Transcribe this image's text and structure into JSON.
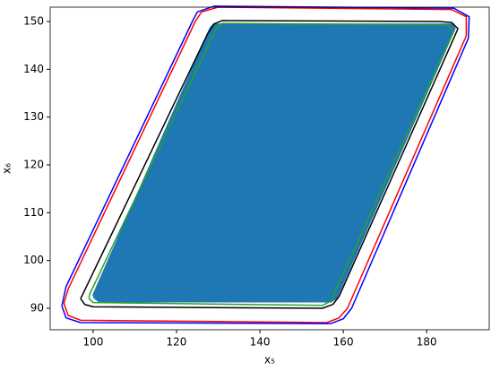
{
  "chart_data": {
    "type": "scatter",
    "x_label": "x₅",
    "y_label": "x₆",
    "xlim": [
      89.7,
      195
    ],
    "ylim": [
      85.5,
      153
    ],
    "xticks": [
      100,
      120,
      140,
      160,
      180
    ],
    "yticks": [
      90,
      100,
      110,
      120,
      130,
      140,
      150
    ],
    "series": [
      {
        "color": "#1f77b4",
        "fill": true,
        "x": [
          100.5,
          101.5,
          157,
          158.2,
          186.5,
          186,
          129,
          128.3,
          100.3
        ],
        "y": [
          92.3,
          91.6,
          91.6,
          92.3,
          148.5,
          149.2,
          149.2,
          148.5,
          92.8
        ]
      },
      {
        "color": "#2ca02c",
        "fill": false,
        "x": [
          99,
          100,
          155,
          157,
          186.5,
          185,
          131,
          129.5,
          99.2,
          99
        ],
        "y": [
          92,
          91.2,
          90.6,
          91.5,
          148,
          149.3,
          149.6,
          148.5,
          93,
          92
        ]
      },
      {
        "color": "#000000",
        "fill": false,
        "x": [
          97,
          98,
          100,
          155,
          157.5,
          159,
          186.5,
          187.5,
          186,
          183,
          131,
          129,
          127.5,
          98,
          97
        ],
        "y": [
          92,
          90.8,
          90.3,
          90,
          90.8,
          92.5,
          146.5,
          148.5,
          149.8,
          150,
          150.2,
          149.5,
          147.5,
          93.8,
          92
        ]
      },
      {
        "color": "#ff0000",
        "fill": false,
        "x": [
          93,
          94,
          97,
          156,
          159,
          161,
          189.5,
          189.5,
          186,
          130,
          126,
          124.5,
          94,
          93
        ],
        "y": [
          91,
          88.5,
          87.5,
          87,
          88,
          90,
          147,
          151,
          152.5,
          153,
          152,
          150,
          94,
          91
        ]
      },
      {
        "color": "#0000ff",
        "fill": false,
        "x": [
          92.5,
          93.5,
          97,
          157,
          160,
          162,
          190,
          190.2,
          186.5,
          129,
          125,
          123.8,
          93.5,
          92.5
        ],
        "y": [
          90.5,
          88,
          87,
          86.8,
          87.8,
          90,
          146.5,
          151,
          152.8,
          153.2,
          152,
          150,
          94.5,
          90.5
        ]
      }
    ]
  }
}
